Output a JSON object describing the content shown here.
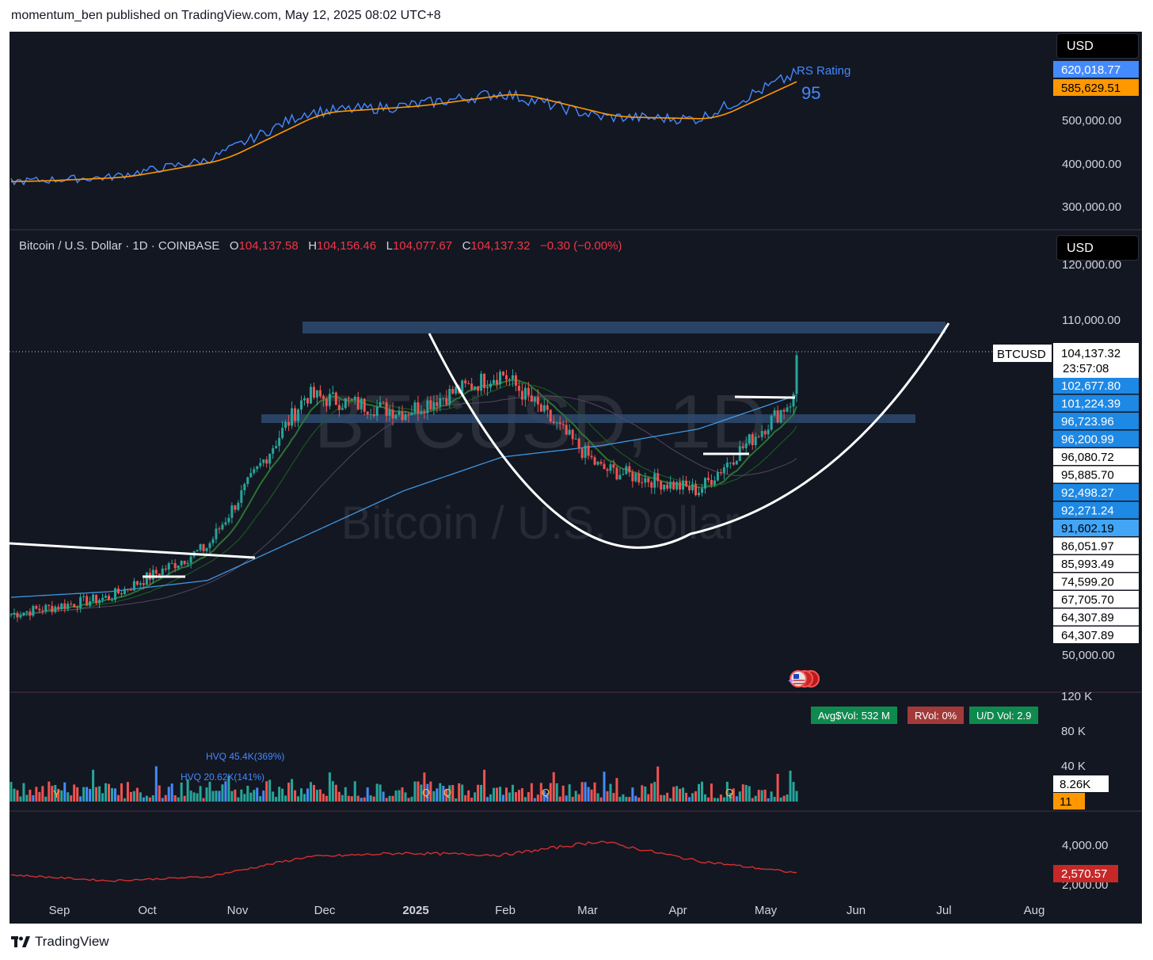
{
  "header": {
    "publisher": "momentum_ben published on TradingView.com, May 12, 2025 08:02 UTC+8"
  },
  "footer": {
    "brand": "TradingView"
  },
  "rs_pane": {
    "currency": "USD",
    "rating_label": "RS Rating",
    "rating_value": "95",
    "price_labels": [
      {
        "text": "620,018.77",
        "color": "#448aff",
        "text_color": "#ffffff"
      },
      {
        "text": "585,629.51",
        "color": "#ff9800",
        "text_color": "#000000"
      }
    ],
    "ticks": [
      "500,000.00",
      "400,000.00",
      "300,000.00"
    ]
  },
  "main_pane": {
    "currency": "USD",
    "legend": {
      "symbol": "Bitcoin / U.S. Dollar · 1D · COINBASE",
      "o_label": "O",
      "o_value": "104,137.58",
      "h_label": "H",
      "h_value": "104,156.46",
      "l_label": "L",
      "l_value": "104,077.67",
      "c_label": "C",
      "c_value": "104,137.32",
      "change": "−0.30 (−0.00%)"
    },
    "watermark_ticker": "BTCUSD, 1D",
    "watermark_name": "Bitcoin / U.S. Dollar",
    "symbol_tag": "BTCUSD",
    "last_price": "104,137.32",
    "countdown": "23:57:08",
    "ticks": [
      "120,000.00",
      "110,000.00",
      "50,000.00"
    ],
    "price_labels": [
      {
        "text": "102,677.80",
        "color": "#1e88e5",
        "text_color": "#ffffff"
      },
      {
        "text": "101,224.39",
        "color": "#1e88e5",
        "text_color": "#ffffff"
      },
      {
        "text": "96,723.96",
        "color": "#1e88e5",
        "text_color": "#ffffff"
      },
      {
        "text": "96,200.99",
        "color": "#1e88e5",
        "text_color": "#ffffff"
      },
      {
        "text": "96,080.72",
        "color": "#ffffff",
        "text_color": "#000000"
      },
      {
        "text": "95,885.70",
        "color": "#ffffff",
        "text_color": "#000000"
      },
      {
        "text": "92,498.27",
        "color": "#1e88e5",
        "text_color": "#ffffff"
      },
      {
        "text": "92,271.24",
        "color": "#1e88e5",
        "text_color": "#ffffff"
      },
      {
        "text": "91,602.19",
        "color": "#42a5f5",
        "text_color": "#000000"
      },
      {
        "text": "86,051.97",
        "color": "#ffffff",
        "text_color": "#000000"
      },
      {
        "text": "85,993.49",
        "color": "#ffffff",
        "text_color": "#000000"
      },
      {
        "text": "74,599.20",
        "color": "#ffffff",
        "text_color": "#000000"
      },
      {
        "text": "67,705.70",
        "color": "#ffffff",
        "text_color": "#000000"
      },
      {
        "text": "64,307.89",
        "color": "#ffffff",
        "text_color": "#000000"
      },
      {
        "text": "64,307.89",
        "color": "#ffffff",
        "text_color": "#000000"
      }
    ]
  },
  "volume_pane": {
    "ticks": [
      "120 K",
      "80 K",
      "40 K"
    ],
    "last_volume": "8.26K",
    "count_label": "11",
    "hvq1": "HVQ 45.4K(369%)",
    "hvq2": "HVQ 20.62K(141%)",
    "avg_vol": "Avg$Vol: 532 M",
    "rvol": "RVol: 0%",
    "ud_vol": "U/D Vol: 2.9",
    "markers": [
      "Y",
      "Q",
      "Q",
      "Q",
      "Q"
    ]
  },
  "bottom_pane": {
    "ticks": [
      "4,000.00",
      "2,000.00"
    ],
    "last_value": "2,570.57"
  },
  "time_axis": [
    "Sep",
    "Oct",
    "Nov",
    "Dec",
    "2025",
    "Feb",
    "Mar",
    "Apr",
    "May",
    "Jun",
    "Jul",
    "Aug"
  ],
  "chart_data": {
    "type": "line",
    "title": "Bitcoin / U.S. Dollar · 1D · COINBASE",
    "x": [
      "Sep",
      "Oct",
      "Nov",
      "Dec",
      "2025",
      "Feb",
      "Mar",
      "Apr",
      "May"
    ],
    "series": [
      {
        "values": [
          58000,
          61000,
          70000,
          97000,
          94000,
          101000,
          84000,
          80000,
          97000
        ]
      },
      {
        "values": [
          360000,
          370000,
          410000,
          520000,
          535000,
          565000,
          510000,
          505000,
          610000
        ]
      },
      {
        "values": [
          2500,
          2200,
          2400,
          3400,
          3600,
          3500,
          4200,
          3200,
          2600
        ]
      }
    ],
    "key_levels": [
      110000,
      96723.96
    ],
    "last_close": 104137.32,
    "colors": {
      "up": "#26a69a",
      "down": "#ef5350",
      "rs": "#448aff",
      "rs_ma": "#ff9800",
      "ma200": "#42a5f5",
      "indicator": "#d32f2f"
    }
  }
}
